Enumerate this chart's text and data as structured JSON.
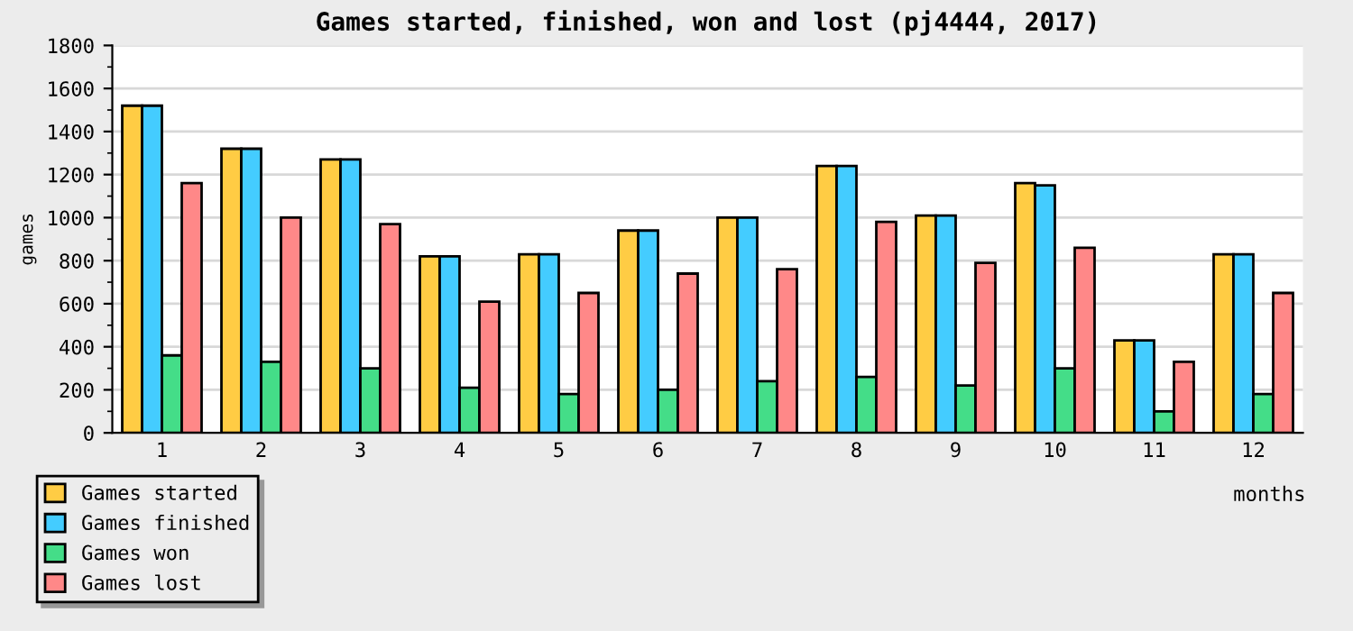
{
  "chart_data": {
    "type": "bar",
    "title": "Games started, finished, won and lost (pj4444, 2017)",
    "xlabel": "months",
    "ylabel": "games",
    "categories": [
      "1",
      "2",
      "3",
      "4",
      "5",
      "6",
      "7",
      "8",
      "9",
      "10",
      "11",
      "12"
    ],
    "series": [
      {
        "name": "Games started",
        "color": "#ffcc44",
        "values": [
          1520,
          1320,
          1270,
          820,
          830,
          940,
          1000,
          1240,
          1010,
          1160,
          430,
          830
        ]
      },
      {
        "name": "Games finished",
        "color": "#44ccff",
        "values": [
          1520,
          1320,
          1270,
          820,
          830,
          940,
          1000,
          1240,
          1010,
          1150,
          430,
          830
        ]
      },
      {
        "name": "Games won",
        "color": "#44dd88",
        "values": [
          360,
          330,
          300,
          210,
          180,
          200,
          240,
          260,
          220,
          300,
          100,
          180
        ]
      },
      {
        "name": "Games lost",
        "color": "#ff8888",
        "values": [
          1160,
          1000,
          970,
          610,
          650,
          740,
          760,
          980,
          790,
          860,
          330,
          650
        ]
      }
    ],
    "ylim": [
      0,
      1800
    ],
    "yticks": [
      0,
      200,
      400,
      600,
      800,
      1000,
      1200,
      1400,
      1600,
      1800
    ],
    "grid": "y",
    "legend": "bottom left"
  }
}
